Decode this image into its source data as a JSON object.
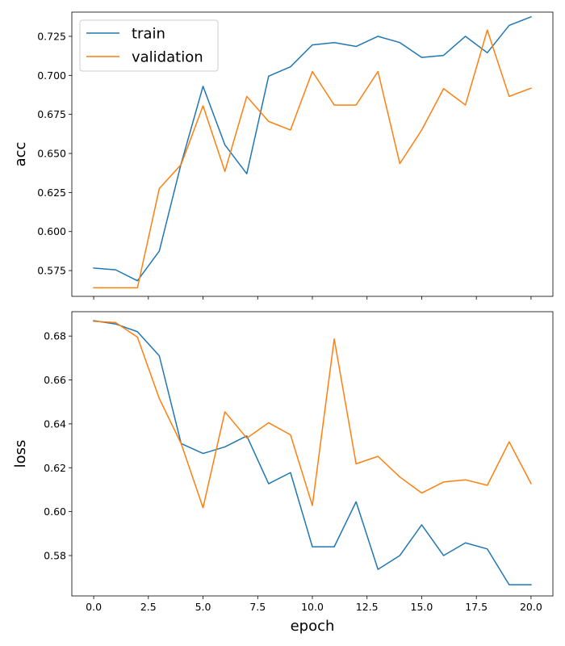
{
  "chart_data": [
    {
      "type": "line",
      "ylabel": "acc",
      "xlabel": "",
      "xlim": [
        -1,
        21
      ],
      "ylim": [
        0.5585,
        0.7405
      ],
      "xticks": [
        "0.0",
        "2.5",
        "5.0",
        "7.5",
        "10.0",
        "12.5",
        "15.0",
        "17.5",
        "20.0"
      ],
      "xtick_values": [
        0,
        2.5,
        5,
        7.5,
        10,
        12.5,
        15,
        17.5,
        20
      ],
      "yticks": [
        "0.575",
        "0.600",
        "0.625",
        "0.650",
        "0.675",
        "0.700",
        "0.725"
      ],
      "ytick_values": [
        0.575,
        0.6,
        0.625,
        0.65,
        0.675,
        0.7,
        0.725
      ],
      "show_x_tick_labels": false,
      "grid": false,
      "legend": "top-left",
      "x": [
        0,
        1,
        2,
        3,
        4,
        5,
        6,
        7,
        8,
        9,
        10,
        11,
        12,
        13,
        14,
        15,
        16,
        17,
        18,
        19,
        20
      ],
      "series": [
        {
          "name": "train",
          "color": "#1f77b4",
          "values": [
            0.5766,
            0.5755,
            0.5685,
            0.5875,
            0.6435,
            0.693,
            0.6555,
            0.637,
            0.6995,
            0.7055,
            0.7195,
            0.721,
            0.7185,
            0.725,
            0.721,
            0.7115,
            0.7128,
            0.725,
            0.7145,
            0.732,
            0.7375
          ]
        },
        {
          "name": "validation",
          "color": "#ff7f0e",
          "values": [
            0.564,
            0.564,
            0.564,
            0.6275,
            0.643,
            0.6805,
            0.6385,
            0.6865,
            0.6705,
            0.665,
            0.7025,
            0.681,
            0.681,
            0.7025,
            0.6435,
            0.665,
            0.6915,
            0.681,
            0.729,
            0.6865,
            0.6918
          ]
        }
      ]
    },
    {
      "type": "line",
      "ylabel": "loss",
      "xlabel": "epoch",
      "xlim": [
        -1,
        21
      ],
      "ylim": [
        0.5616,
        0.6911
      ],
      "xticks": [
        "0.0",
        "2.5",
        "5.0",
        "7.5",
        "10.0",
        "12.5",
        "15.0",
        "17.5",
        "20.0"
      ],
      "xtick_values": [
        0,
        2.5,
        5,
        7.5,
        10,
        12.5,
        15,
        17.5,
        20
      ],
      "yticks": [
        "0.58",
        "0.60",
        "0.62",
        "0.64",
        "0.66",
        "0.68"
      ],
      "ytick_values": [
        0.58,
        0.6,
        0.62,
        0.64,
        0.66,
        0.68
      ],
      "show_x_tick_labels": true,
      "grid": false,
      "legend": "none",
      "x": [
        0,
        1,
        2,
        3,
        4,
        5,
        6,
        7,
        8,
        9,
        10,
        11,
        12,
        13,
        14,
        15,
        16,
        17,
        18,
        19,
        20
      ],
      "series": [
        {
          "name": "train",
          "color": "#1f77b4",
          "values": [
            0.687,
            0.6855,
            0.682,
            0.671,
            0.631,
            0.6265,
            0.6295,
            0.6345,
            0.6127,
            0.6178,
            0.584,
            0.584,
            0.6045,
            0.5737,
            0.58,
            0.594,
            0.58,
            0.5858,
            0.583,
            0.5667,
            0.5667
          ]
        },
        {
          "name": "validation",
          "color": "#ff7f0e",
          "values": [
            0.6867,
            0.6862,
            0.6795,
            0.6515,
            0.631,
            0.6018,
            0.6455,
            0.6335,
            0.6405,
            0.635,
            0.6028,
            0.6787,
            0.6218,
            0.6252,
            0.6158,
            0.6085,
            0.6135,
            0.6145,
            0.612,
            0.6318,
            0.6128
          ]
        }
      ]
    }
  ]
}
